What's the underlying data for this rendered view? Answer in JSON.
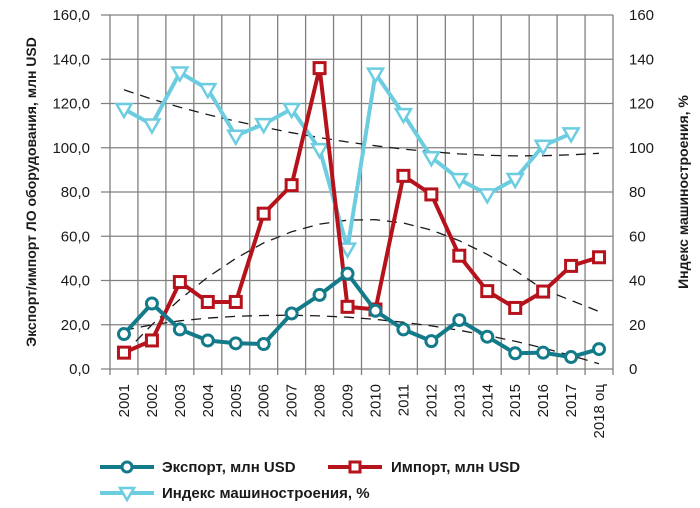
{
  "chart_data": {
    "type": "line",
    "title": "",
    "categories": [
      "2001",
      "2002",
      "2003",
      "2004",
      "2005",
      "2006",
      "2007",
      "2008",
      "2009",
      "2010",
      "2011",
      "2012",
      "2013",
      "2014",
      "2015",
      "2016",
      "2017",
      "2018 оц"
    ],
    "ylabel": "Экспорт/импорт ЛО оборудования, млн USD",
    "ylabel_right": "Индекс машиностроения, %",
    "ylim": [
      0,
      160
    ],
    "ylim_right": [
      0,
      160
    ],
    "yticks": [
      "0,0",
      "20,0",
      "40,0",
      "60,0",
      "80,0",
      "100,0",
      "120,0",
      "140,0",
      "160,0"
    ],
    "yticks_right": [
      "0",
      "20",
      "40",
      "60",
      "80",
      "100",
      "120",
      "140",
      "160"
    ],
    "grid": true,
    "legend_position": "bottom",
    "series": [
      {
        "name": "Экспорт, млн USD",
        "axis": "left",
        "color": "#137a8a",
        "marker": "circle",
        "values": [
          15.8,
          29.6,
          17.9,
          12.9,
          11.6,
          11.3,
          25.1,
          33.5,
          43.1,
          26.3,
          17.9,
          12.6,
          22.1,
          14.6,
          7.1,
          7.4,
          5.4,
          9.0
        ]
      },
      {
        "name": "Импорт, млн USD",
        "axis": "left",
        "color": "#b5121b",
        "marker": "square",
        "values": [
          7.4,
          12.9,
          39.3,
          30.3,
          30.3,
          70.2,
          83.1,
          136.0,
          28.1,
          26.9,
          87.3,
          78.9,
          51.2,
          35.2,
          27.6,
          35.0,
          46.6,
          50.5
        ]
      },
      {
        "name": "Индекс машиностроения, %",
        "axis": "right",
        "color": "#6dcde0",
        "marker": "triangle-down",
        "values": [
          117.5,
          110.5,
          134.0,
          126.5,
          105.4,
          110.7,
          117.5,
          99.4,
          54.4,
          133.5,
          115.2,
          95.7,
          85.8,
          78.9,
          85.9,
          100.9,
          106.5,
          null
        ]
      }
    ],
    "trendlines": [
      {
        "of": "Экспорт, млн USD",
        "style": "dashed",
        "color": "#1a1a1a",
        "values": [
          17.5,
          20.0,
          21.8,
          23.0,
          23.8,
          24.2,
          24.3,
          24.0,
          23.4,
          22.4,
          21.1,
          19.5,
          17.5,
          15.2,
          12.5,
          9.5,
          6.1,
          2.4
        ]
      },
      {
        "of": "Импорт, млн USD",
        "style": "dashed",
        "color": "#1a1a1a",
        "values": [
          7.0,
          20.0,
          31.5,
          41.5,
          50.0,
          57.0,
          62.0,
          65.5,
          67.3,
          67.5,
          66.0,
          62.8,
          58.0,
          51.8,
          44.5,
          36.0,
          31.0,
          26.0
        ]
      },
      {
        "of": "Индекс машиностроения, %",
        "style": "dashed",
        "color": "#1a1a1a",
        "values": [
          126.2,
          122.0,
          118.3,
          115.0,
          112.0,
          109.3,
          106.8,
          104.6,
          102.6,
          100.9,
          99.4,
          98.2,
          97.2,
          96.6,
          96.3,
          96.4,
          96.8,
          97.5
        ]
      }
    ]
  }
}
